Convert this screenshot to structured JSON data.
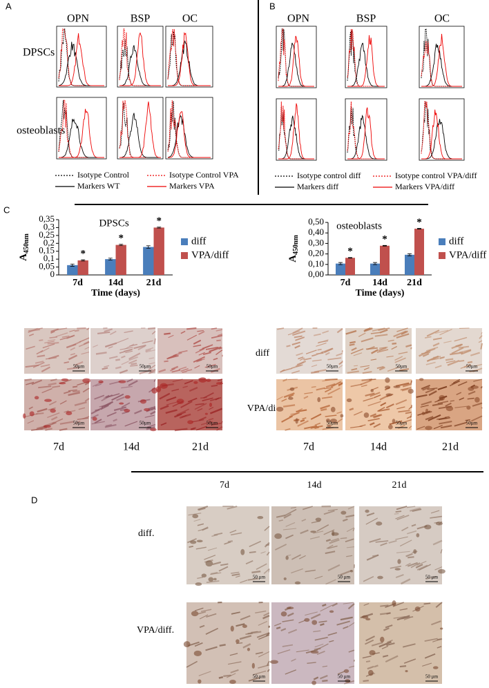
{
  "panel_a": {
    "label": "A",
    "columns": [
      "OPN",
      "BSP",
      "OC"
    ],
    "rows": [
      "DPSCs",
      "osteoblasts"
    ],
    "legend": [
      "Isotype Control",
      "Isotype Control VPA",
      "Markers WT",
      "Markers VPA"
    ]
  },
  "panel_b": {
    "label": "B",
    "columns": [
      "OPN",
      "BSP",
      "OC"
    ],
    "legend": [
      "Isotype control diff",
      "Isotype control VPA/diff",
      "Markers diff",
      "Markers VPA/diff"
    ]
  },
  "panel_c": {
    "label": "C",
    "rows": [
      "diff",
      "VPA/diff"
    ],
    "days_left": [
      "7d",
      "14d",
      "21d"
    ],
    "days_right": [
      "7d",
      "14d",
      "21d"
    ],
    "scale_bar": "50µm"
  },
  "panel_d": {
    "label": "D",
    "columns": [
      "7d",
      "14d",
      "21d"
    ],
    "rows": [
      "diff.",
      "VPA/diff."
    ],
    "scale_bar": "50 µm"
  },
  "chart_data": [
    {
      "type": "bar",
      "title": "DPSCs",
      "x_label": "Time (days)",
      "y_label": "A",
      "y_label_sub": "450nm",
      "categories": [
        "7d",
        "14d",
        "21d"
      ],
      "series": [
        {
          "name": "diff",
          "color": "#4a7ebb",
          "values": [
            0.062,
            0.1,
            0.177
          ],
          "errors": [
            0.007,
            0.006,
            0.008
          ]
        },
        {
          "name": "VPA/diff",
          "color": "#c0504d",
          "values": [
            0.092,
            0.19,
            0.3
          ],
          "errors": [
            0.004,
            0.004,
            0.003
          ]
        }
      ],
      "annotations": [
        "*",
        "*",
        "*"
      ],
      "ylim": [
        0,
        0.35
      ],
      "yticks": [
        0,
        {
          "value": 0.05,
          "label": "0,05"
        },
        {
          "value": 0.1,
          "label": "0,1"
        },
        {
          "value": 0.15,
          "label": "0,15"
        },
        {
          "value": 0.2,
          "label": "0,2"
        },
        {
          "value": 0.25,
          "label": "0,25"
        },
        {
          "value": 0.3,
          "label": "0,3"
        },
        {
          "value": 0.35,
          "label": "0,35"
        }
      ]
    },
    {
      "type": "bar",
      "title": "osteoblasts",
      "x_label": "Time (days)",
      "y_label": "A",
      "y_label_sub": "450nm",
      "categories": [
        "7d",
        "14d",
        "21d"
      ],
      "series": [
        {
          "name": "diff",
          "color": "#4a7ebb",
          "values": [
            0.108,
            0.108,
            0.192
          ],
          "errors": [
            0.01,
            0.01,
            0.01
          ]
        },
        {
          "name": "VPA/diff",
          "color": "#c0504d",
          "values": [
            0.163,
            0.278,
            0.44
          ],
          "errors": [
            0.003,
            0.003,
            0.003
          ]
        }
      ],
      "annotations": [
        "*",
        "*",
        "*"
      ],
      "ylim": [
        0,
        0.5
      ],
      "yticks": [
        {
          "value": 0,
          "label": "0,00"
        },
        {
          "value": 0.1,
          "label": "0,10"
        },
        {
          "value": 0.2,
          "label": "0,20"
        },
        {
          "value": 0.3,
          "label": "0,30"
        },
        {
          "value": 0.4,
          "label": "0,40"
        },
        {
          "value": 0.5,
          "label": "0,50"
        }
      ]
    }
  ]
}
